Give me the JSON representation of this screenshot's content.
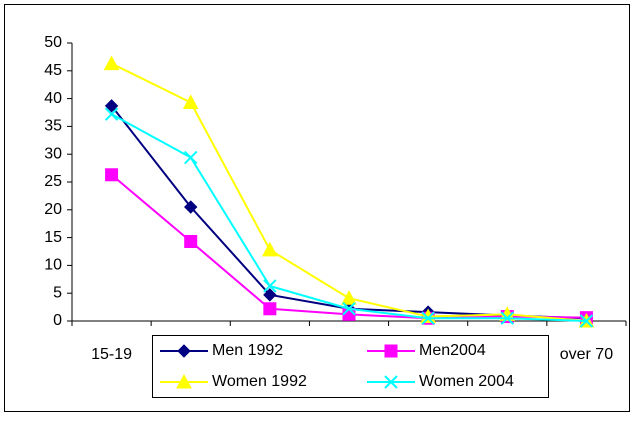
{
  "chart_data": {
    "type": "line",
    "categories": [
      "15-19",
      null,
      null,
      null,
      null,
      null,
      "over 70"
    ],
    "series": [
      {
        "name": "Men 1992",
        "color": "#000080",
        "marker": "diamond",
        "values": [
          38.7,
          20.5,
          4.7,
          2.2,
          1.6,
          1.0,
          0.5
        ]
      },
      {
        "name": "Men2004",
        "color": "#ff00ff",
        "marker": "square",
        "values": [
          26.3,
          14.3,
          2.2,
          1.2,
          0.5,
          0.8,
          0.6
        ]
      },
      {
        "name": "Women 1992",
        "color": "#ffff00",
        "marker": "triangle",
        "values": [
          46.3,
          39.3,
          12.8,
          4.1,
          0.8,
          1.2,
          0
        ]
      },
      {
        "name": "Women 2004",
        "color": "#00ffff",
        "marker": "x",
        "values": [
          37.2,
          29.4,
          6.3,
          2.2,
          0.5,
          0.5,
          0
        ]
      }
    ],
    "ylim": [
      0,
      50
    ],
    "yticks": [
      0,
      5,
      10,
      15,
      20,
      25,
      30,
      35,
      40,
      45,
      50
    ],
    "legend": "bottom"
  }
}
